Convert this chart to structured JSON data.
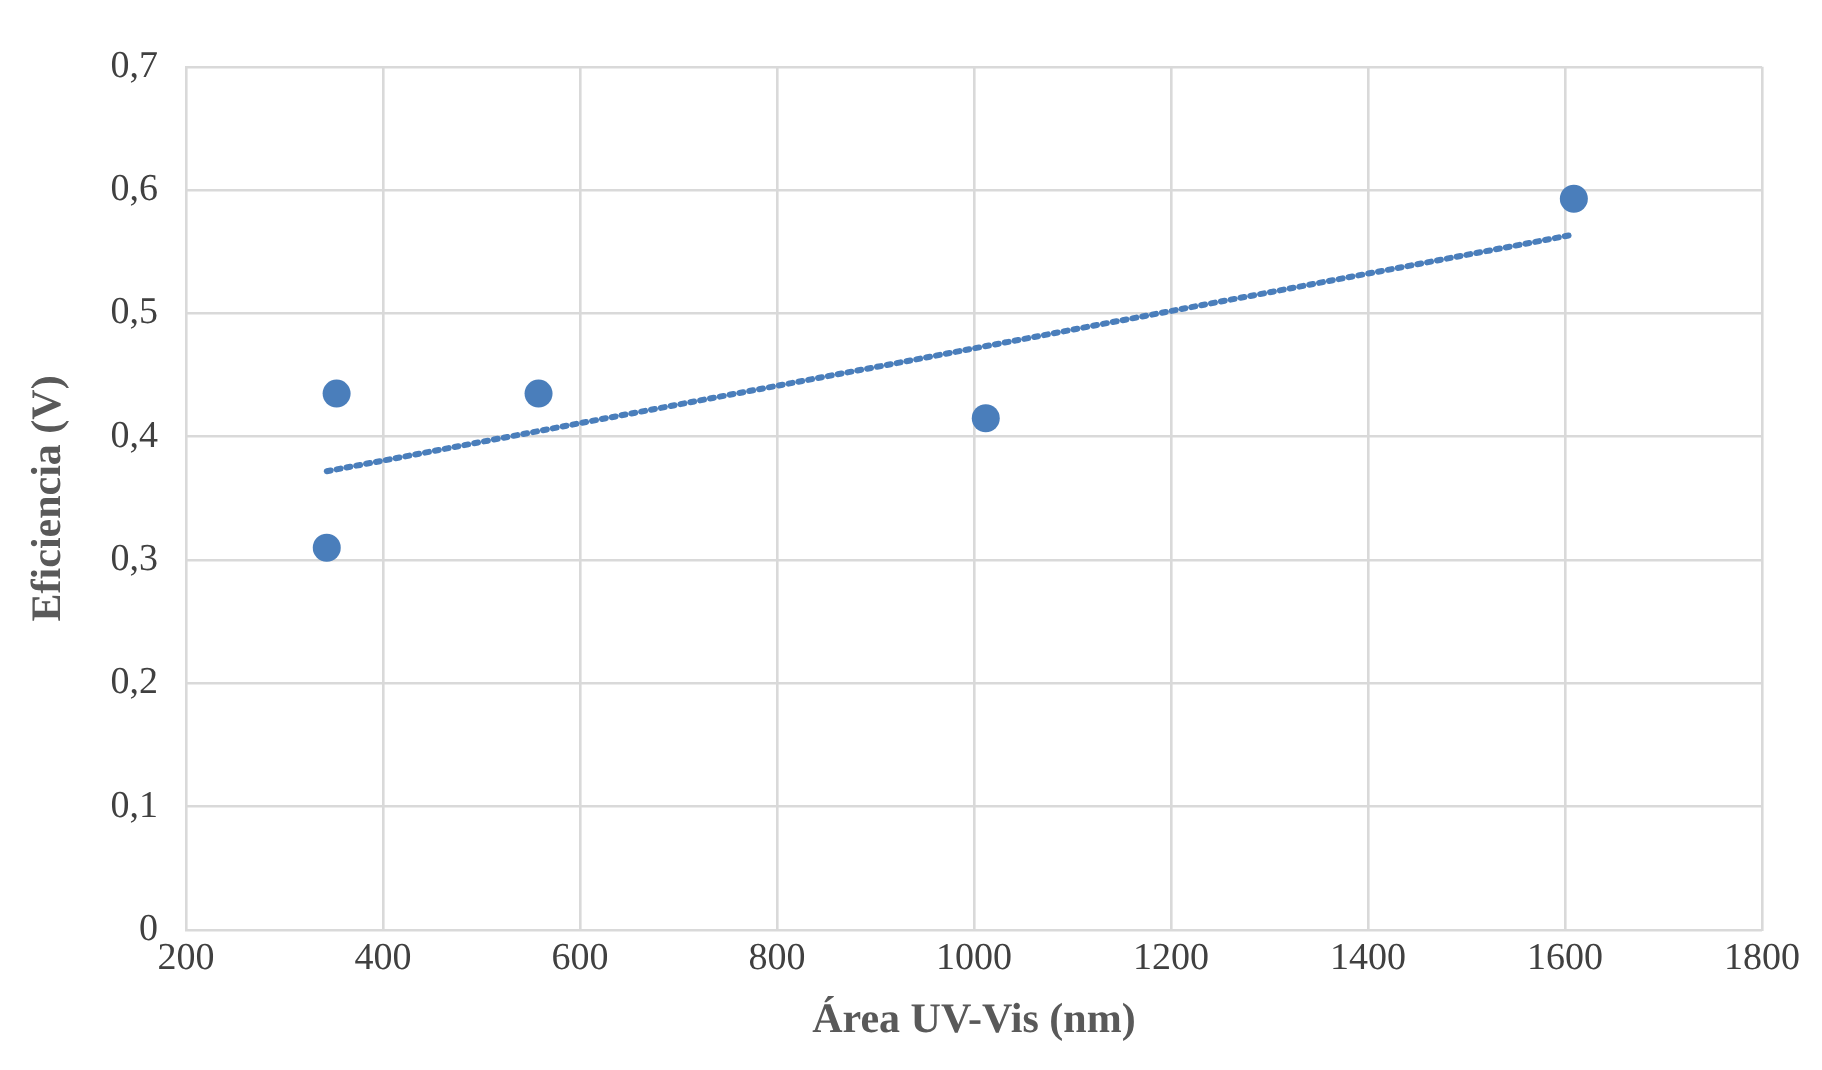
{
  "chart_data": {
    "type": "scatter",
    "xlabel": "Área UV-Vis (nm)",
    "ylabel": "Eficiencia (V)",
    "xlim": [
      200,
      1800
    ],
    "xticks": [
      200,
      400,
      600,
      800,
      1000,
      1200,
      1400,
      1600,
      1800
    ],
    "ylim": [
      0,
      0.7
    ],
    "yticks": [
      {
        "value": 0,
        "label": "0"
      },
      {
        "value": 0.1,
        "label": "0,1"
      },
      {
        "value": 0.2,
        "label": "0,2"
      },
      {
        "value": 0.3,
        "label": "0,3"
      },
      {
        "value": 0.4,
        "label": "0,4"
      },
      {
        "value": 0.5,
        "label": "0,5"
      },
      {
        "value": 0.6,
        "label": "0,6"
      },
      {
        "value": 0.7,
        "label": "0,7"
      }
    ],
    "grid": true,
    "legend": false,
    "series": [
      {
        "color": "#4a7ebb",
        "marker": "circle",
        "x": [
          343,
          353,
          558,
          1012,
          1609
        ],
        "values": [
          0.31,
          0.435,
          0.435,
          0.415,
          0.593
        ]
      },
      {
        "type": "line",
        "color": "#4a7ebb",
        "marker": "none",
        "line_style": "dotted",
        "x": [
          343,
          1609
        ],
        "values": [
          0.372,
          0.564
        ]
      }
    ]
  }
}
